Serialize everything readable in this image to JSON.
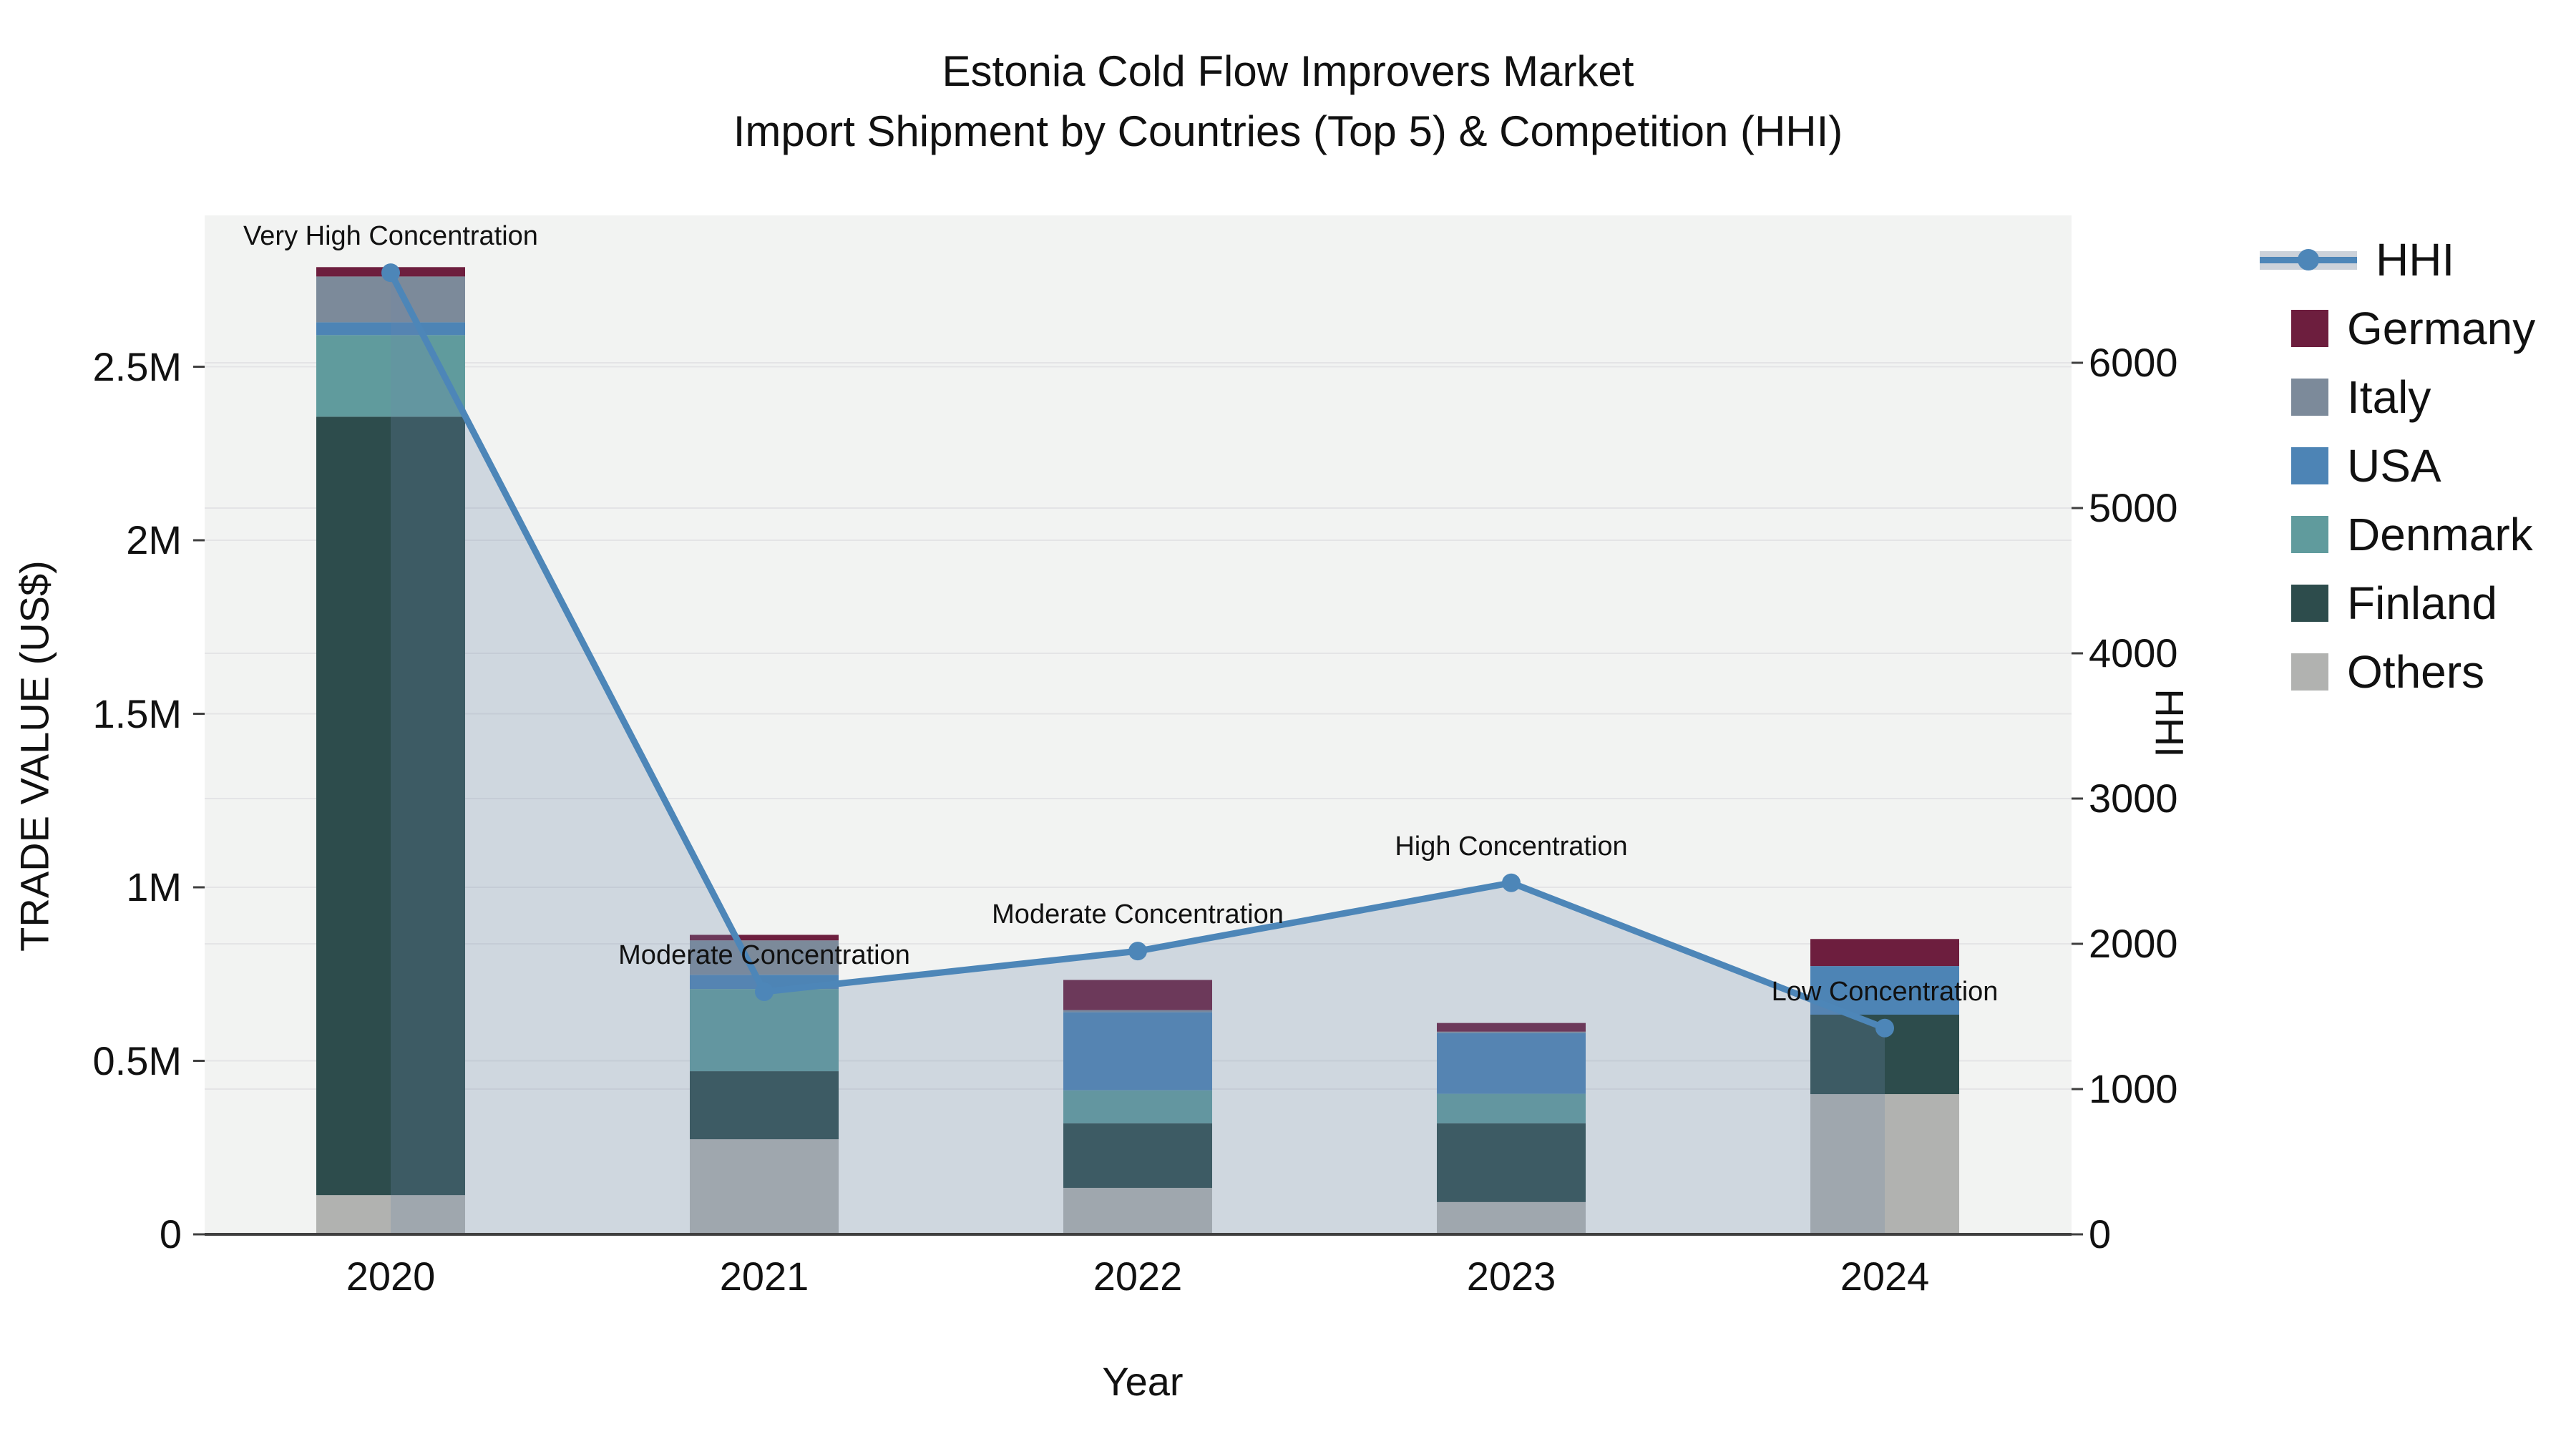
{
  "title": {
    "line1": "Estonia Cold Flow Improvers Market",
    "line2": "Import Shipment by Countries (Top 5) & Competition (HHI)"
  },
  "axes": {
    "x": {
      "title": "Year",
      "categories": [
        "2020",
        "2021",
        "2022",
        "2023",
        "2024"
      ]
    },
    "y_left": {
      "title": "TRADE VALUE (US$)",
      "ticks": [
        {
          "label": "0",
          "value": 0
        },
        {
          "label": "0.5M",
          "value": 500000
        },
        {
          "label": "1M",
          "value": 1000000
        },
        {
          "label": "1.5M",
          "value": 1500000
        },
        {
          "label": "2M",
          "value": 2000000
        },
        {
          "label": "2.5M",
          "value": 2500000
        }
      ]
    },
    "y_right": {
      "title": "HHI",
      "ticks": [
        {
          "label": "0",
          "value": 0
        },
        {
          "label": "1000",
          "value": 1000
        },
        {
          "label": "2000",
          "value": 2000
        },
        {
          "label": "3000",
          "value": 3000
        },
        {
          "label": "4000",
          "value": 4000
        },
        {
          "label": "5000",
          "value": 5000
        },
        {
          "label": "6000",
          "value": 6000
        }
      ]
    }
  },
  "legend": {
    "items": [
      {
        "label": "HHI",
        "type": "line",
        "color": "#4d86b8"
      },
      {
        "label": "Germany",
        "type": "swatch",
        "color": "#6d1e3e"
      },
      {
        "label": "Italy",
        "type": "swatch",
        "color": "#7c8a9a"
      },
      {
        "label": "USA",
        "type": "swatch",
        "color": "#4d84b5"
      },
      {
        "label": "Denmark",
        "type": "swatch",
        "color": "#609b9d"
      },
      {
        "label": "Finland",
        "type": "swatch",
        "color": "#2d4c4c"
      },
      {
        "label": "Others",
        "type": "swatch",
        "color": "#b1b2b0"
      }
    ]
  },
  "colors": {
    "plot_background": "#f2f3f2",
    "gridline": "#e4e4e6",
    "axis_line": "#3f3f3f",
    "hhi_line": "#4d86b8",
    "hhi_area_fill": "rgba(110,135,170,0.26)",
    "legend_area_band": "#ccd2da"
  },
  "chart_data": [
    {
      "type": "bar",
      "stacked": true,
      "title": "Import shipment trade value by country",
      "categories": [
        "2020",
        "2021",
        "2022",
        "2023",
        "2024"
      ],
      "xlabel": "Year",
      "ylabel": "TRADE VALUE (US$)",
      "ylim": [
        0,
        2940000
      ],
      "stack_order_bottom_to_top": [
        "Others",
        "Finland",
        "Denmark",
        "USA",
        "Italy",
        "Germany"
      ],
      "series": [
        {
          "name": "Germany",
          "color": "#6d1e3e",
          "values": [
            27000,
            16000,
            87000,
            25000,
            78000
          ]
        },
        {
          "name": "Italy",
          "color": "#7c8a9a",
          "values": [
            132000,
            99000,
            6000,
            4000,
            0
          ]
        },
        {
          "name": "USA",
          "color": "#4d84b5",
          "values": [
            37000,
            41000,
            225000,
            175000,
            140000
          ]
        },
        {
          "name": "Denmark",
          "color": "#609b9d",
          "values": [
            235000,
            237000,
            95000,
            85000,
            0
          ]
        },
        {
          "name": "Finland",
          "color": "#2d4c4c",
          "values": [
            2243000,
            196000,
            186000,
            227000,
            229000
          ]
        },
        {
          "name": "Others",
          "color": "#b1b2b0",
          "values": [
            113000,
            274000,
            134000,
            93000,
            404000
          ]
        }
      ],
      "totals": [
        2787000,
        863000,
        733000,
        609000,
        851000
      ]
    },
    {
      "type": "line",
      "name": "HHI",
      "x": [
        "2020",
        "2021",
        "2022",
        "2023",
        "2024"
      ],
      "values": [
        6620,
        1670,
        1950,
        2420,
        1420
      ],
      "yaxis": "right",
      "ylabel": "HHI",
      "ylim": [
        0,
        7000
      ],
      "area_fill": true,
      "markers": true,
      "point_annotations": [
        "Very High Concentration",
        "Moderate Concentration",
        "Moderate Concentration",
        "High Concentration",
        "Low Concentration"
      ]
    }
  ]
}
